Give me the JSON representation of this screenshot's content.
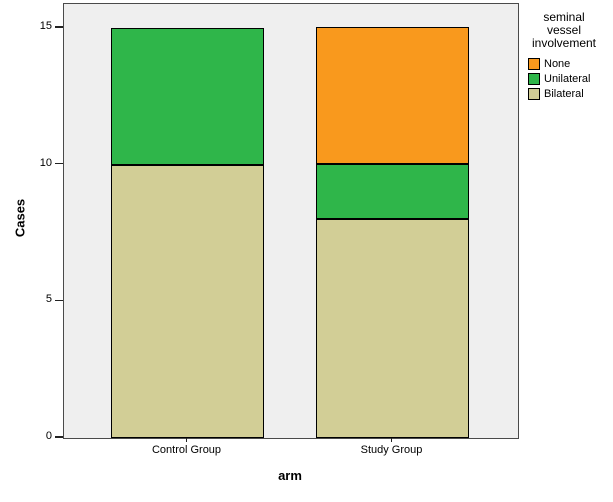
{
  "figure": {
    "bg": "#ffffff",
    "plot_bg": "#efefef",
    "frame_color": "#4a4a4a",
    "bar_border_color": "#000000",
    "text_color": "#000000"
  },
  "chart_data": {
    "type": "bar",
    "stacked": true,
    "title": "",
    "xlabel": "arm",
    "ylabel": "Cases",
    "categories": [
      "Control Group",
      "Study Group"
    ],
    "series": [
      {
        "name": "None",
        "color": "#F9991D",
        "values": [
          0,
          5
        ]
      },
      {
        "name": "Unilateral",
        "color": "#2FB64A",
        "values": [
          5,
          2
        ]
      },
      {
        "name": "Bilateral",
        "color": "#D2CE96",
        "values": [
          10,
          8
        ]
      }
    ],
    "totals": [
      15,
      15
    ],
    "ylim": [
      0,
      15
    ],
    "yticks": [
      0,
      5,
      10,
      15
    ],
    "grid": false,
    "legend_title": "seminal vessel involvement",
    "legend_position": "right"
  }
}
